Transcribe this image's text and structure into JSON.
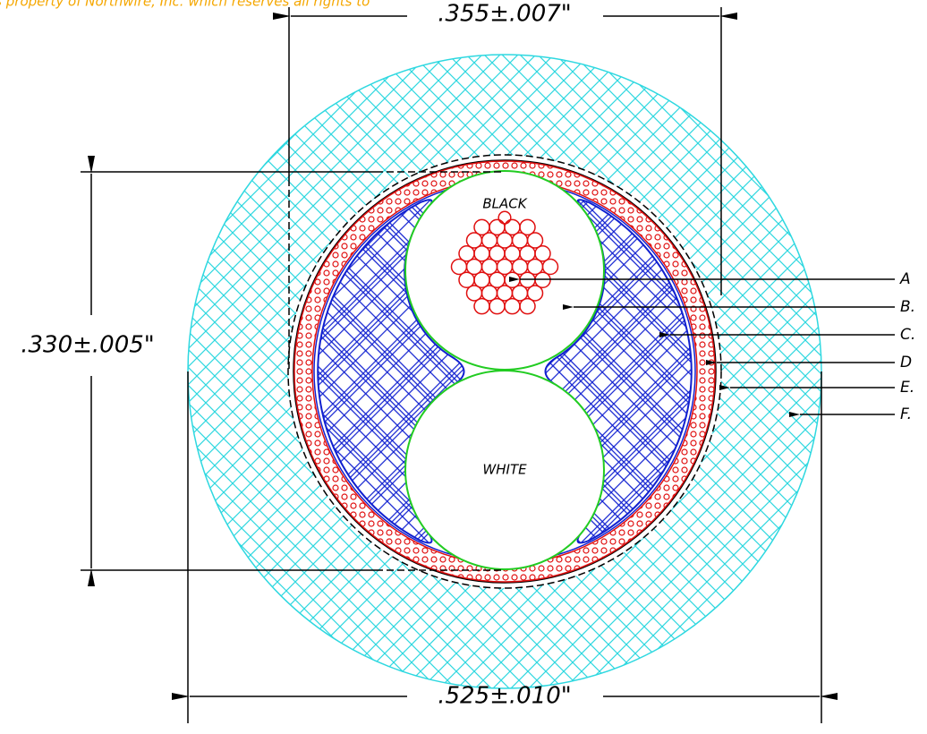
{
  "note": "is property of Northwire, Inc. which reserves all rights to",
  "dimensions": {
    "inner_width": ".355±.007\"",
    "inner_height": ".330±.005\"",
    "outer_diameter": ".525±.010\""
  },
  "conductors": [
    "BLACK",
    "WHITE"
  ],
  "callouts": [
    "A",
    "B.",
    "C.",
    "D",
    "E.",
    "F."
  ]
}
